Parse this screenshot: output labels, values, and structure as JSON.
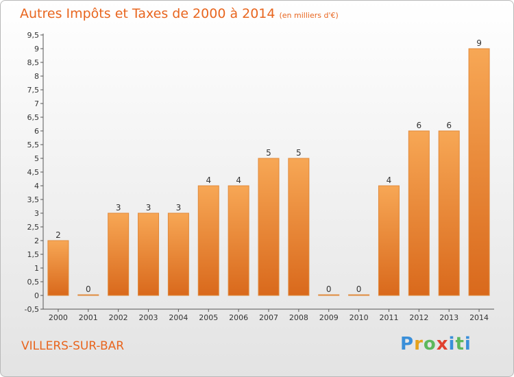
{
  "chart_data": {
    "type": "bar",
    "title": "Autres Impôts et Taxes de 2000 à 2014",
    "unit_label": "(en milliers d'€)",
    "categories": [
      "2000",
      "2001",
      "2002",
      "2003",
      "2004",
      "2005",
      "2006",
      "2007",
      "2008",
      "2009",
      "2010",
      "2011",
      "2012",
      "2013",
      "2014"
    ],
    "values": [
      2,
      0,
      3,
      3,
      3,
      4,
      4,
      5,
      5,
      0,
      0,
      4,
      6,
      6,
      9
    ],
    "ylim": [
      -0.5,
      9.5
    ],
    "yticks": [
      "-0,5",
      "0",
      "0,5",
      "1",
      "1,5",
      "2",
      "2,5",
      "3",
      "3,5",
      "4",
      "4,5",
      "5",
      "5,5",
      "6",
      "6,5",
      "7",
      "7,5",
      "8",
      "8,5",
      "9",
      "9,5"
    ],
    "ytick_values": [
      -0.5,
      0,
      0.5,
      1,
      1.5,
      2,
      2.5,
      3,
      3.5,
      4,
      4.5,
      5,
      5.5,
      6,
      6.5,
      7,
      7.5,
      8,
      8.5,
      9,
      9.5
    ],
    "xlabel": "",
    "ylabel": "",
    "bar_color_top": "#f7a755",
    "bar_color_bottom": "#d9691c",
    "grid": false
  },
  "commune": "VILLERS-SUR-BAR",
  "logo": {
    "p": "P",
    "r": "r",
    "o": "o",
    "x": "x",
    "i": "i",
    "t": "t",
    "i2": "i"
  }
}
